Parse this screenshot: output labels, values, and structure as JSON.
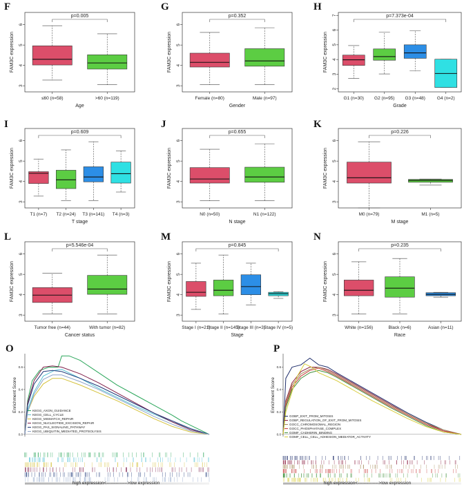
{
  "colors": {
    "red": "#dc4e6a",
    "green": "#5ccd43",
    "blue": "#2c8ee6",
    "cyan": "#2fe0e3"
  },
  "chart_data": [
    {
      "type": "boxplot",
      "panel": "F",
      "pvalue": "p=0.005",
      "ylabel": "FAM3C expression",
      "xlabel": "Age",
      "ylim": [
        2.7,
        6.6
      ],
      "yticks": [
        "3",
        "4",
        "5",
        "6"
      ],
      "categories": [
        "≤60 (n=58)",
        ">60 (n=119)"
      ],
      "boxes": [
        {
          "min": 3.28,
          "q1": 4.02,
          "median": 4.3,
          "q3": 4.96,
          "max": 5.95,
          "color": "red"
        },
        {
          "min": 3.05,
          "q1": 3.82,
          "median": 4.12,
          "q3": 4.52,
          "max": 5.55,
          "color": "green"
        }
      ]
    },
    {
      "type": "boxplot",
      "panel": "G",
      "pvalue": "p=0.352",
      "ylabel": "FAM3C expression",
      "xlabel": "Gender",
      "ylim": [
        2.7,
        6.6
      ],
      "yticks": [
        "3",
        "4",
        "5",
        "6"
      ],
      "categories": [
        "Female (n=80)",
        "Male (n=97)"
      ],
      "boxes": [
        {
          "min": 3.05,
          "q1": 3.92,
          "median": 4.15,
          "q3": 4.6,
          "max": 5.62,
          "color": "red"
        },
        {
          "min": 3.05,
          "q1": 3.96,
          "median": 4.22,
          "q3": 4.82,
          "max": 5.85,
          "color": "green"
        }
      ]
    },
    {
      "type": "boxplot",
      "panel": "H",
      "pvalue": "p=7.373e-04",
      "ylabel": "FAM3C expression",
      "xlabel": "Grade",
      "ylim": [
        1.8,
        7.2
      ],
      "yticks": [
        "2",
        "3",
        "4",
        "5",
        "6",
        "7"
      ],
      "categories": [
        "G1 (n=30)",
        "G2 (n=95)",
        "G3 (n=48)",
        "G4 (n=2)"
      ],
      "boxes": [
        {
          "min": 2.72,
          "q1": 3.6,
          "median": 3.98,
          "q3": 4.3,
          "max": 4.95,
          "color": "red"
        },
        {
          "min": 3.02,
          "q1": 3.95,
          "median": 4.2,
          "q3": 4.72,
          "max": 5.85,
          "color": "green"
        },
        {
          "min": 3.22,
          "q1": 4.08,
          "median": 4.45,
          "q3": 5.0,
          "max": 5.95,
          "color": "blue"
        },
        {
          "min": 2.1,
          "q1": 2.1,
          "median": 3.05,
          "q3": 4.02,
          "max": 4.02,
          "color": "cyan"
        }
      ]
    },
    {
      "type": "boxplot",
      "panel": "I",
      "pvalue": "p=0.609",
      "ylabel": "FAM3C expression",
      "xlabel": "T stage",
      "ylim": [
        2.7,
        6.6
      ],
      "yticks": [
        "3",
        "4",
        "5",
        "6"
      ],
      "categories": [
        "T1 (n=7)",
        "T2 (n=24)",
        "T3 (n=141)",
        "T4 (n=3)"
      ],
      "boxes": [
        {
          "min": 3.28,
          "q1": 3.9,
          "median": 4.4,
          "q3": 4.48,
          "max": 5.1,
          "color": "red"
        },
        {
          "min": 3.05,
          "q1": 3.65,
          "median": 4.08,
          "q3": 4.55,
          "max": 5.55,
          "color": "green"
        },
        {
          "min": 3.05,
          "q1": 3.98,
          "median": 4.22,
          "q3": 4.72,
          "max": 5.95,
          "color": "blue"
        },
        {
          "min": 3.48,
          "q1": 3.92,
          "median": 4.38,
          "q3": 4.95,
          "max": 5.5,
          "color": "cyan"
        }
      ]
    },
    {
      "type": "boxplot",
      "panel": "J",
      "pvalue": "p=0.655",
      "ylabel": "FAM3C expression",
      "xlabel": "N stage",
      "ylim": [
        2.7,
        6.6
      ],
      "yticks": [
        "3",
        "4",
        "5",
        "6"
      ],
      "categories": [
        "N0 (n=50)",
        "N1 (n=122)"
      ],
      "boxes": [
        {
          "min": 3.05,
          "q1": 3.92,
          "median": 4.12,
          "q3": 4.68,
          "max": 5.58,
          "color": "red"
        },
        {
          "min": 3.05,
          "q1": 3.96,
          "median": 4.22,
          "q3": 4.7,
          "max": 5.85,
          "color": "green"
        }
      ]
    },
    {
      "type": "boxplot",
      "panel": "K",
      "pvalue": "p=0.226",
      "ylabel": "FAM3C expression",
      "xlabel": "M stage",
      "ylim": [
        2.7,
        6.6
      ],
      "yticks": [
        "3",
        "4",
        "5",
        "6"
      ],
      "categories": [
        "M0 (n=79)",
        "M1 (n=5)"
      ],
      "boxes": [
        {
          "min": 2.7,
          "q1": 3.92,
          "median": 4.18,
          "q3": 4.95,
          "max": 5.95,
          "color": "red"
        },
        {
          "min": 3.82,
          "q1": 3.96,
          "median": 4.05,
          "q3": 4.1,
          "max": 4.12,
          "color": "green"
        }
      ]
    },
    {
      "type": "boxplot",
      "panel": "L",
      "pvalue": "p=5.546e-04",
      "ylabel": "FAM3C expression",
      "xlabel": "Cancer status",
      "ylim": [
        2.7,
        6.6
      ],
      "yticks": [
        "3",
        "4",
        "5",
        "6"
      ],
      "categories": [
        "Tumor free (n=44)",
        "With tumor (n=82)"
      ],
      "boxes": [
        {
          "min": 3.05,
          "q1": 3.62,
          "median": 3.98,
          "q3": 4.35,
          "max": 5.05,
          "color": "red"
        },
        {
          "min": 3.05,
          "q1": 4.02,
          "median": 4.28,
          "q3": 4.95,
          "max": 5.95,
          "color": "green"
        }
      ]
    },
    {
      "type": "boxplot",
      "panel": "M",
      "pvalue": "p=0.845",
      "ylabel": "FAM3C expression",
      "xlabel": "Stage",
      "ylim": [
        2.7,
        6.6
      ],
      "yticks": [
        "3",
        "4",
        "5",
        "6"
      ],
      "categories": [
        "Stage I (n=21)",
        "Stage II (n=145)",
        "Stage III (n=3)",
        "Stage IV (n=5)"
      ],
      "boxes": [
        {
          "min": 3.28,
          "q1": 3.92,
          "median": 4.12,
          "q3": 4.65,
          "max": 5.55,
          "color": "red"
        },
        {
          "min": 3.05,
          "q1": 3.95,
          "median": 4.22,
          "q3": 4.72,
          "max": 5.95,
          "color": "green"
        },
        {
          "min": 3.5,
          "q1": 4.0,
          "median": 4.4,
          "q3": 4.98,
          "max": 5.55,
          "color": "blue"
        },
        {
          "min": 3.82,
          "q1": 3.95,
          "median": 4.05,
          "q3": 4.12,
          "max": 4.15,
          "color": "cyan"
        }
      ]
    },
    {
      "type": "boxplot",
      "panel": "N",
      "pvalue": "p=0.235",
      "ylabel": "FAM3C expression",
      "xlabel": "Race",
      "ylim": [
        2.7,
        6.6
      ],
      "yticks": [
        "3",
        "4",
        "5",
        "6"
      ],
      "categories": [
        "White (n=156)",
        "Black (n=6)",
        "Asian (n=11)"
      ],
      "boxes": [
        {
          "min": 3.05,
          "q1": 3.95,
          "median": 4.22,
          "q3": 4.72,
          "max": 5.62,
          "color": "red"
        },
        {
          "min": 3.05,
          "q1": 3.88,
          "median": 4.32,
          "q3": 4.88,
          "max": 5.78,
          "color": "green"
        },
        {
          "min": 3.88,
          "q1": 3.95,
          "median": 4.02,
          "q3": 4.1,
          "max": 4.12,
          "color": "blue"
        }
      ]
    },
    {
      "type": "line",
      "panel": "O",
      "ylabel": "Enrichment Score",
      "ylim": [
        -0.02,
        0.72
      ],
      "yticks": [
        "0.0",
        "0.2",
        "0.4",
        "0.6"
      ],
      "axis_text": "high expression<-------------->low expression",
      "series": [
        {
          "name": "KEGG_AXON_GUIDANCE",
          "color": "#2aa65a",
          "x": [
            0,
            0.015,
            0.04,
            0.08,
            0.13,
            0.18,
            0.2,
            0.24,
            0.3,
            0.4,
            0.5,
            0.6,
            0.7,
            0.8,
            0.85,
            0.95,
            1.0
          ],
          "y": [
            0,
            0.3,
            0.48,
            0.57,
            0.6,
            0.6,
            0.7,
            0.7,
            0.66,
            0.55,
            0.44,
            0.35,
            0.26,
            0.17,
            0.12,
            0.04,
            0
          ]
        },
        {
          "name": "KEGG_CELL_CYCLE",
          "color": "#56c1d4",
          "x": [
            0,
            0.015,
            0.05,
            0.1,
            0.16,
            0.2,
            0.3,
            0.4,
            0.5,
            0.6,
            0.7,
            0.8,
            0.9,
            1.0
          ],
          "y": [
            0,
            0.22,
            0.38,
            0.52,
            0.57,
            0.58,
            0.5,
            0.41,
            0.33,
            0.25,
            0.18,
            0.11,
            0.05,
            0
          ]
        },
        {
          "name": "KEGG_MISMATCH_REPAIR",
          "color": "#d4c13a",
          "x": [
            0,
            0.015,
            0.05,
            0.1,
            0.15,
            0.2,
            0.3,
            0.4,
            0.5,
            0.6,
            0.7,
            0.8,
            0.9,
            1.0
          ],
          "y": [
            0,
            0.2,
            0.34,
            0.45,
            0.5,
            0.5,
            0.44,
            0.37,
            0.3,
            0.22,
            0.14,
            0.07,
            0.02,
            0
          ]
        },
        {
          "name": "KEGG_NUCLEOTIDE_EXCISION_REPAIR",
          "color": "#7f1f4a",
          "x": [
            0,
            0.015,
            0.05,
            0.1,
            0.15,
            0.2,
            0.3,
            0.4,
            0.5,
            0.6,
            0.7,
            0.8,
            0.9,
            1.0
          ],
          "y": [
            0,
            0.28,
            0.48,
            0.6,
            0.61,
            0.6,
            0.54,
            0.46,
            0.37,
            0.28,
            0.19,
            0.11,
            0.04,
            0
          ]
        },
        {
          "name": "KEGG_PAS_SIGNALING_PATHWAY",
          "color": "#1f3a7a",
          "x": [
            0,
            0.015,
            0.05,
            0.1,
            0.15,
            0.2,
            0.3,
            0.4,
            0.5,
            0.6,
            0.7,
            0.8,
            0.9,
            1.0
          ],
          "y": [
            0,
            0.26,
            0.45,
            0.56,
            0.57,
            0.56,
            0.5,
            0.43,
            0.35,
            0.27,
            0.19,
            0.12,
            0.05,
            0
          ]
        },
        {
          "name": "KEGG_UBIQUITIN_MEDIATED_PROTEOLYSIS",
          "color": "#8ea4c9",
          "x": [
            0,
            0.015,
            0.05,
            0.1,
            0.15,
            0.2,
            0.3,
            0.4,
            0.5,
            0.6,
            0.7,
            0.8,
            0.9,
            1.0
          ],
          "y": [
            0,
            0.2,
            0.36,
            0.49,
            0.53,
            0.53,
            0.47,
            0.4,
            0.32,
            0.24,
            0.16,
            0.09,
            0.03,
            0
          ]
        }
      ]
    },
    {
      "type": "line",
      "panel": "P",
      "ylabel": "Enrichment Score",
      "ylim": [
        -0.02,
        0.72
      ],
      "yticks": [
        "0.0",
        "0.2",
        "0.4",
        "0.6"
      ],
      "axis_text": "high expression<-------------->low expression",
      "series": [
        {
          "name": "GOBP_EXIT_FROM_MITOSIS",
          "color": "#1f2e6b",
          "x": [
            0,
            0.015,
            0.05,
            0.1,
            0.15,
            0.2,
            0.25,
            0.3,
            0.4,
            0.5,
            0.6,
            0.7,
            0.8,
            0.9,
            1.0
          ],
          "y": [
            0,
            0.5,
            0.6,
            0.62,
            0.68,
            0.62,
            0.6,
            0.55,
            0.46,
            0.37,
            0.28,
            0.19,
            0.11,
            0.04,
            0
          ]
        },
        {
          "name": "GOBP_REGULATION_OF_EXIT_FROM_MITOSIS",
          "color": "#8b1e3f",
          "x": [
            0,
            0.015,
            0.05,
            0.1,
            0.15,
            0.2,
            0.25,
            0.3,
            0.4,
            0.5,
            0.6,
            0.7,
            0.8,
            0.9,
            1.0
          ],
          "y": [
            0,
            0.3,
            0.46,
            0.56,
            0.6,
            0.6,
            0.58,
            0.54,
            0.45,
            0.36,
            0.27,
            0.18,
            0.1,
            0.03,
            0
          ]
        },
        {
          "name": "GOCC_CHROMOSOMAL_REGION",
          "color": "#a58a5a",
          "x": [
            0,
            0.015,
            0.05,
            0.1,
            0.15,
            0.2,
            0.25,
            0.3,
            0.4,
            0.5,
            0.6,
            0.7,
            0.8,
            0.9,
            1.0
          ],
          "y": [
            0,
            0.28,
            0.44,
            0.54,
            0.58,
            0.6,
            0.57,
            0.53,
            0.44,
            0.35,
            0.26,
            0.18,
            0.1,
            0.04,
            0
          ]
        },
        {
          "name": "GOCC_PHOSPHATASE_COMPLEX",
          "color": "#c83c3c",
          "x": [
            0,
            0.015,
            0.05,
            0.1,
            0.15,
            0.2,
            0.25,
            0.3,
            0.4,
            0.5,
            0.6,
            0.7,
            0.8,
            0.9,
            1.0
          ],
          "y": [
            0,
            0.26,
            0.42,
            0.52,
            0.57,
            0.59,
            0.56,
            0.52,
            0.43,
            0.34,
            0.25,
            0.17,
            0.09,
            0.03,
            0
          ]
        },
        {
          "name": "GOMF_CADHERIN_BINDING",
          "color": "#3f8f3a",
          "x": [
            0,
            0.015,
            0.05,
            0.1,
            0.15,
            0.2,
            0.25,
            0.3,
            0.4,
            0.5,
            0.6,
            0.7,
            0.8,
            0.9,
            1.0
          ],
          "y": [
            0,
            0.24,
            0.4,
            0.5,
            0.55,
            0.57,
            0.55,
            0.51,
            0.42,
            0.33,
            0.24,
            0.16,
            0.08,
            0.02,
            0
          ]
        },
        {
          "name": "GOMF_CELL_CELL_ADHESION_MEDIATOR_ACTIVITY",
          "color": "#d8cc3a",
          "x": [
            0,
            0.015,
            0.05,
            0.08,
            0.12,
            0.16,
            0.2,
            0.3,
            0.4,
            0.5,
            0.6,
            0.7,
            0.8,
            0.9,
            1.0
          ],
          "y": [
            0,
            0.2,
            0.38,
            0.52,
            0.63,
            0.6,
            0.55,
            0.48,
            0.39,
            0.3,
            0.22,
            0.14,
            0.07,
            0.02,
            0
          ]
        }
      ]
    }
  ]
}
